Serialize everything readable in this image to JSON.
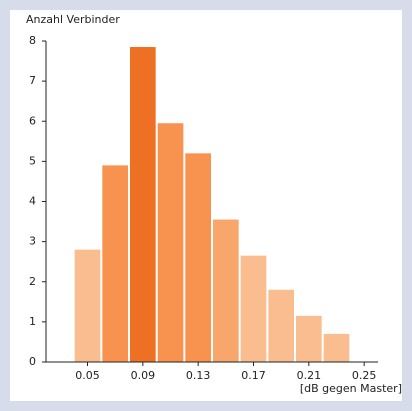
{
  "chart_data": {
    "type": "histogram",
    "ylabel": "Anzahl Verbinder",
    "xlabel": "[dB gegen Master]",
    "bins": [
      0.04,
      0.06,
      0.08,
      0.1,
      0.12,
      0.14,
      0.16,
      0.18,
      0.2,
      0.22,
      0.24
    ],
    "values": [
      2.8,
      4.9,
      7.85,
      5.95,
      5.2,
      3.55,
      2.65,
      1.8,
      1.15,
      0.7
    ],
    "colors": [
      "#f9bd90",
      "#f7924f",
      "#ee7025",
      "#f7924f",
      "#f7924f",
      "#f8a66c",
      "#f9bd90",
      "#f9bd90",
      "#f9bd90",
      "#f9bd90"
    ],
    "xlim": [
      0.02,
      0.26
    ],
    "ylim": [
      0,
      8
    ],
    "xticks": [
      0.05,
      0.09,
      0.13,
      0.17,
      0.21,
      0.25
    ],
    "yticks": [
      0,
      1,
      2,
      3,
      4,
      5,
      6,
      7,
      8
    ]
  }
}
